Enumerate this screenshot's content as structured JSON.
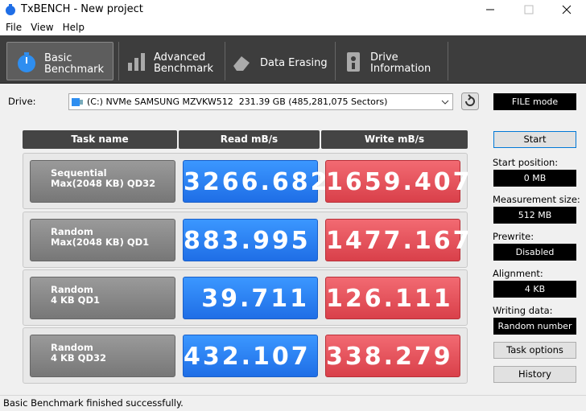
{
  "window": {
    "title": "TxBENCH - New project"
  },
  "menu": [
    "File",
    "View",
    "Help"
  ],
  "tabs": [
    {
      "lines": [
        "Basic",
        "Benchmark"
      ]
    },
    {
      "lines": [
        "Advanced",
        "Benchmark"
      ]
    },
    {
      "lines": [
        "Data Erasing"
      ]
    },
    {
      "lines": [
        "Drive",
        "Information"
      ]
    }
  ],
  "drive": {
    "label": "Drive:",
    "selection": "(C:) NVMe SAMSUNG MZVKW512  231.39 GB (485,281,075 Sectors)",
    "mode": "FILE mode"
  },
  "table": {
    "headers": [
      "Task name",
      "Read mB/s",
      "Write mB/s"
    ],
    "rows": [
      {
        "task": [
          "Sequential",
          "Max(2048 KB) QD32"
        ],
        "read": "3266.682",
        "write": "1659.407"
      },
      {
        "task": [
          "Random",
          "Max(2048 KB) QD1"
        ],
        "read": "883.995",
        "write": "1477.167"
      },
      {
        "task": [
          "Random",
          "4 KB QD1"
        ],
        "read": "39.711",
        "write": "126.111"
      },
      {
        "task": [
          "Random",
          "4 KB QD32"
        ],
        "read": "432.107",
        "write": "338.279"
      }
    ]
  },
  "settings": {
    "start": "Start",
    "fields": [
      {
        "label": "Start position:",
        "value": "0 MB"
      },
      {
        "label": "Measurement size:",
        "value": "512 MB"
      },
      {
        "label": "Prewrite:",
        "value": "Disabled"
      },
      {
        "label": "Alignment:",
        "value": "4 KB"
      },
      {
        "label": "Writing data:",
        "value": "Random number"
      }
    ],
    "task_options": "Task options",
    "history": "History"
  },
  "status": "Basic Benchmark finished successfully."
}
